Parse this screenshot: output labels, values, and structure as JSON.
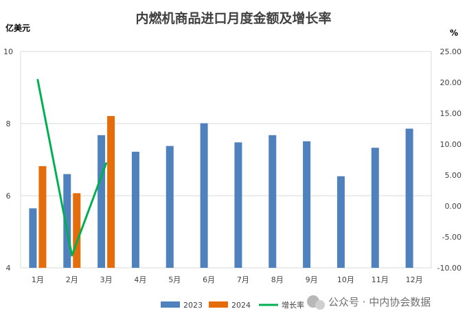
{
  "chart_data": {
    "type": "bar",
    "title": "内燃机商品进口月度金额及增长率",
    "y_left_unit": "亿美元",
    "y_right_unit": "%",
    "categories": [
      "1月",
      "2月",
      "3月",
      "4月",
      "5月",
      "6月",
      "7月",
      "8月",
      "9月",
      "10月",
      "11月",
      "12月"
    ],
    "series": [
      {
        "name": "2023",
        "kind": "bar",
        "axis": "left",
        "color": "#4f81bd",
        "values": [
          5.65,
          6.6,
          7.68,
          7.22,
          7.38,
          8.01,
          7.48,
          7.68,
          7.51,
          6.54,
          7.33,
          7.86
        ]
      },
      {
        "name": "2024",
        "kind": "bar",
        "axis": "left",
        "color": "#e46c0a",
        "values": [
          6.82,
          6.07,
          8.21,
          null,
          null,
          null,
          null,
          null,
          null,
          null,
          null,
          null
        ]
      },
      {
        "name": "增长率",
        "kind": "line",
        "axis": "right",
        "color": "#00b050",
        "values": [
          20.4,
          -8.0,
          6.9,
          null,
          null,
          null,
          null,
          null,
          null,
          null,
          null,
          null
        ]
      }
    ],
    "y_left": {
      "min": 4,
      "max": 10,
      "ticks": [
        "4",
        "6",
        "8",
        "10"
      ]
    },
    "y_right": {
      "min": -10,
      "max": 25,
      "ticks": [
        "-10.00",
        "-5.00",
        "0.00",
        "5.00",
        "10.00",
        "15.00",
        "20.00",
        "25.00"
      ]
    },
    "grid": true,
    "legend": "bottom"
  },
  "watermark": "公众号 · 中内协会数据"
}
